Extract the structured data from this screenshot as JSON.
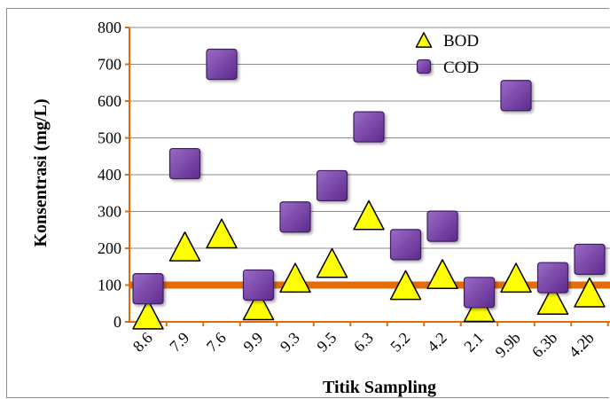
{
  "chart_data": {
    "type": "scatter",
    "title": "",
    "xlabel": "Titik Sampling",
    "ylabel": "Konsentrasi (mg/L)",
    "categories": [
      "8.6",
      "7.9",
      "7.6",
      "9.9",
      "9.3",
      "9.5",
      "6.3",
      "5.2",
      "4.2",
      "2.1",
      "9.9b",
      "6.3b",
      "4.2b"
    ],
    "ylim": [
      0,
      800
    ],
    "yticks": [
      "0",
      "100",
      "200",
      "300",
      "400",
      "500",
      "600",
      "700",
      "800"
    ],
    "grid": true,
    "legend_position": "top-right",
    "series": [
      {
        "name": "BOD",
        "marker": "triangle",
        "color": "#ffff00",
        "values": [
          20,
          205,
          240,
          45,
          120,
          160,
          290,
          100,
          130,
          40,
          120,
          60,
          80
        ]
      },
      {
        "name": "COD",
        "marker": "square",
        "color": "#7030a0",
        "values": [
          90,
          430,
          700,
          100,
          285,
          370,
          530,
          210,
          260,
          80,
          615,
          120,
          170
        ]
      }
    ],
    "reference_line": {
      "value": 100,
      "color": "#e36c09"
    },
    "axis_color": "#e36c09"
  }
}
